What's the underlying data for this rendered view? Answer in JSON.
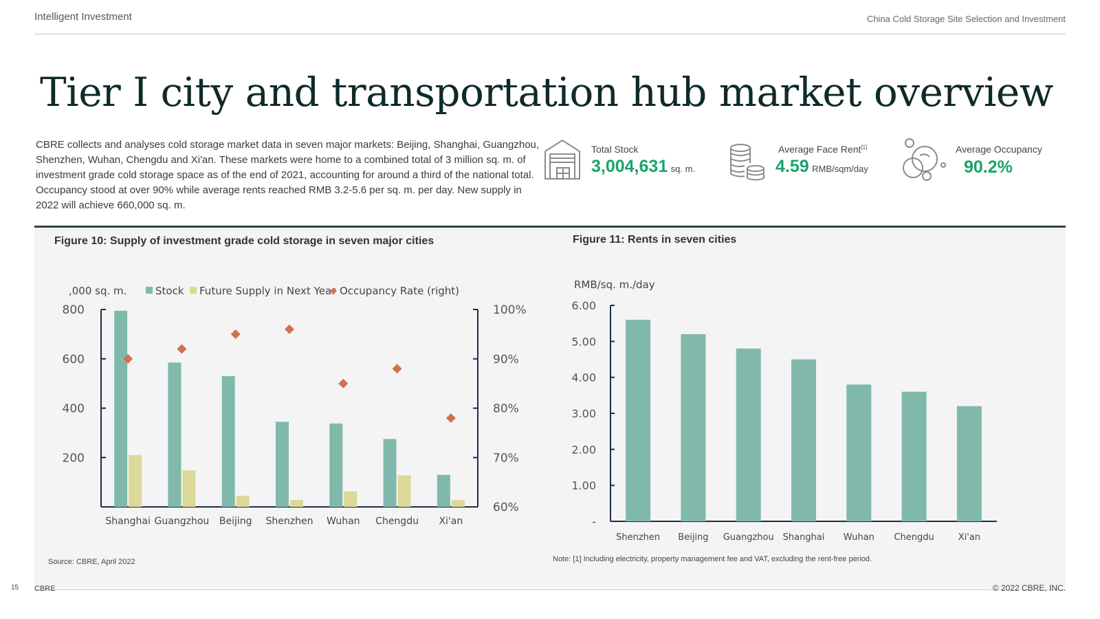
{
  "header": {
    "left": "Intelligent Investment",
    "right": "China Cold Storage Site Selection and Investment"
  },
  "title": "Tier I city and transportation hub market overview",
  "intro": "CBRE collects and analyses cold storage market data in seven major markets: Beijing, Shanghai, Guangzhou, Shenzhen, Wuhan, Chengdu and Xi'an. These markets were home to a combined total of 3 million sq. m. of investment grade cold storage space as of the end of 2021, accounting for around a third of the national total. Occupancy stood at over 90% while average rents reached RMB 3.2-5.6 per sq. m. per day. New supply in 2022 will achieve 660,000 sq. m.",
  "kpis": {
    "stock": {
      "label": "Total Stock",
      "value": "3,004,631",
      "unit": "sq. m.",
      "icon": "warehouse-icon"
    },
    "rent": {
      "label": "Average Face Rent",
      "sup": "[1]",
      "value": "4.59",
      "unit": "RMB/sqm/day",
      "icon": "coins-icon"
    },
    "occupancy": {
      "label": "Average Occupancy",
      "value": "90.2%",
      "icon": "bubbles-icon"
    }
  },
  "figure10": {
    "title": "Figure 10: Supply of investment grade cold storage in seven major cities"
  },
  "figure11": {
    "title": "Figure 11: Rents in seven cities"
  },
  "source": "Source: CBRE, April 2022",
  "note": "Note: [1] Including electricity, property management fee and VAT, excluding the rent-free period.",
  "footer": {
    "page": "15",
    "brand": "CBRE",
    "copyright": "© 2022 CBRE, INC."
  },
  "colors": {
    "stock": "#80b9ab",
    "future": "#dcd899",
    "occupancy": "#d2714f",
    "accent": "#17a56b",
    "axis": "#1c2b4a"
  },
  "chart_data": [
    {
      "type": "bar",
      "title": "Figure 10: Supply of investment grade cold storage in seven major cities",
      "ylabel": ",000 sq. m.",
      "y2label": "Occupancy Rate (right)",
      "categories": [
        "Shanghai",
        "Guangzhou",
        "Beijing",
        "Shenzhen",
        "Wuhan",
        "Chengdu",
        "Xi'an"
      ],
      "ylim": [
        0,
        800
      ],
      "yticks": [
        "800",
        "600",
        "400",
        "200"
      ],
      "y2lim": [
        60,
        100
      ],
      "y2ticks": [
        "100%",
        "90%",
        "80%",
        "70%",
        "60%"
      ],
      "legend": {
        "stock": "Stock",
        "future": "Future Supply in Next Year",
        "occupancy": "Occupancy Rate (right)"
      },
      "series": [
        {
          "name": "Stock",
          "values": [
            795,
            585,
            530,
            345,
            338,
            275,
            130
          ]
        },
        {
          "name": "Future Supply in Next Year",
          "values": [
            210,
            148,
            45,
            28,
            63,
            128,
            28
          ]
        },
        {
          "name": "Occupancy Rate (right)",
          "axis": "right",
          "values": [
            90,
            92,
            95,
            96,
            85,
            88,
            78
          ]
        }
      ]
    },
    {
      "type": "bar",
      "title": "Figure 11: Rents in seven cities",
      "ylabel": "RMB/sq. m./day",
      "categories": [
        "Shenzhen",
        "Beijing",
        "Guangzhou",
        "Shanghai",
        "Wuhan",
        "Chengdu",
        "Xi'an"
      ],
      "ylim": [
        0,
        6
      ],
      "yticks": [
        "6.00",
        "5.00",
        "4.00",
        "3.00",
        "2.00",
        "1.00",
        "-"
      ],
      "values": [
        5.6,
        5.2,
        4.8,
        4.5,
        3.8,
        3.6,
        3.2
      ]
    }
  ]
}
